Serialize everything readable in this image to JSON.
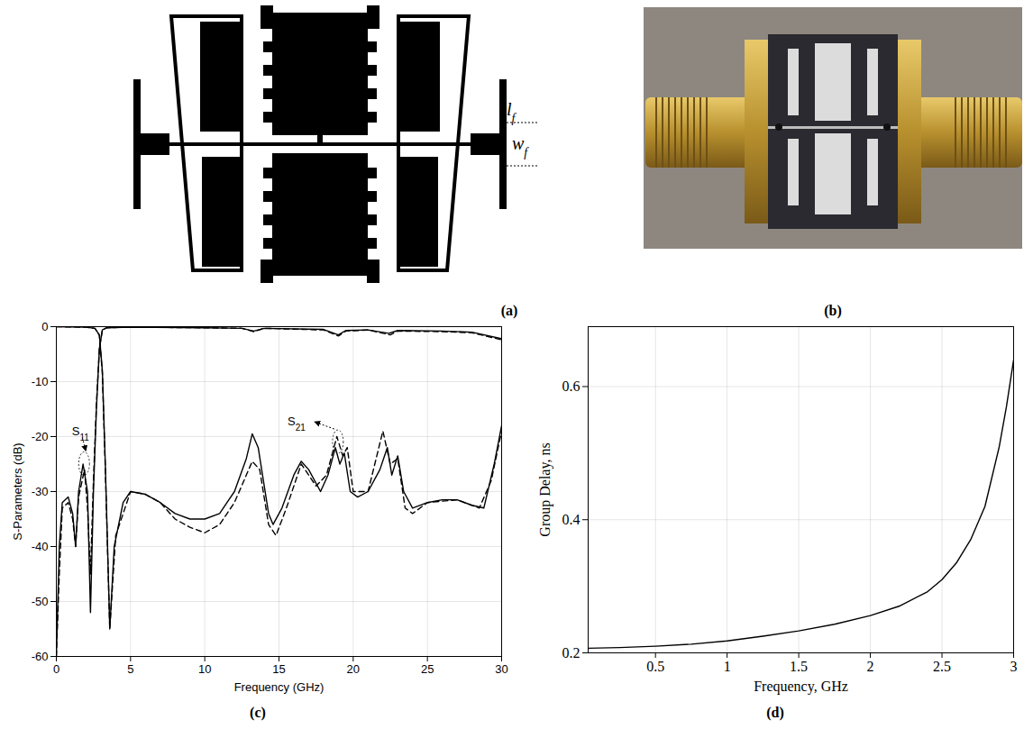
{
  "figure": {
    "a": {
      "panel": "(a)",
      "annotations": [
        {
          "text": "l",
          "sub": "f"
        },
        {
          "text": "w",
          "sub": "f"
        }
      ]
    },
    "b": {
      "panel": "(b)"
    }
  },
  "chart_data": [
    {
      "panel": "(c)",
      "type": "line",
      "xlabel": "Frequency (GHz)",
      "ylabel": "S-Parameters (dB)",
      "xlim": [
        0,
        30
      ],
      "xticks": [
        0,
        5,
        10,
        15,
        20,
        25,
        30
      ],
      "ylim": [
        -60,
        0
      ],
      "yticks": [
        -60,
        -50,
        -40,
        -30,
        -20,
        -10,
        0
      ],
      "grid": true,
      "series": [
        {
          "color": "#000000",
          "line_style": "solid",
          "x": [
            0,
            1,
            2,
            2.6,
            2.9,
            3.1,
            3.3,
            3.6,
            3.9,
            4.5,
            5,
            6,
            7,
            8,
            9,
            10,
            11,
            12,
            12.8,
            13.2,
            13.6,
            14.3,
            14.6,
            15.2,
            16,
            16.5,
            17,
            17.8,
            18.3,
            18.8,
            19.1,
            19.4,
            19.8,
            20.3,
            21,
            21.8,
            22.3,
            22.6,
            23,
            23.4,
            24,
            25,
            26,
            27,
            28,
            28.8,
            29.5,
            30
          ],
          "values": [
            0,
            -0.05,
            -0.1,
            -0.3,
            -1.5,
            -8,
            -25,
            -55,
            -40,
            -32,
            -30,
            -30.5,
            -32,
            -34,
            -35,
            -35,
            -34,
            -30,
            -24,
            -19.5,
            -22,
            -34,
            -36,
            -33,
            -27,
            -24.5,
            -26,
            -30,
            -27,
            -22,
            -25,
            -23,
            -30,
            -31,
            -30,
            -26,
            -22,
            -27,
            -23.5,
            -30,
            -33,
            -32,
            -31.5,
            -31.5,
            -32.5,
            -33,
            -25,
            -18
          ]
        },
        {
          "color": "#000000",
          "line_style": "dashed",
          "x": [
            0,
            1,
            2,
            2.6,
            2.9,
            3.1,
            3.3,
            3.6,
            4,
            5,
            6,
            7,
            8,
            9,
            10,
            11,
            12,
            13.2,
            13.7,
            14.3,
            14.8,
            15.5,
            16.5,
            17.5,
            18.2,
            18.9,
            19.3,
            19.6,
            20,
            21,
            22,
            22.5,
            23,
            23.5,
            24,
            25,
            27,
            28.5,
            29.3,
            30
          ],
          "values": [
            0,
            -0.05,
            -0.1,
            -0.3,
            -1.6,
            -8.5,
            -26,
            -55,
            -38,
            -30,
            -30.5,
            -32,
            -35,
            -36.5,
            -37.5,
            -36,
            -32,
            -24.5,
            -26,
            -36,
            -38,
            -33,
            -25,
            -29,
            -27,
            -20,
            -23.5,
            -22,
            -30,
            -30,
            -19,
            -25,
            -24,
            -33,
            -34,
            -32,
            -31.5,
            -33,
            -28,
            -19
          ]
        },
        {
          "color": "#000000",
          "line_style": "solid",
          "x": [
            0,
            0.2,
            0.4,
            0.8,
            1.1,
            1.3,
            1.5,
            1.8,
            2.1,
            2.3,
            2.5,
            2.7,
            2.9,
            3.1,
            3.4,
            5,
            10,
            12.5,
            13.3,
            14,
            18,
            19,
            19.5,
            21,
            22.4,
            23,
            26,
            28,
            30
          ],
          "values": [
            -60,
            -40,
            -32,
            -31,
            -34,
            -40,
            -30,
            -25,
            -30,
            -52,
            -30,
            -15,
            -4,
            -0.6,
            -0.2,
            -0.1,
            -0.2,
            -0.3,
            -0.8,
            -0.3,
            -0.5,
            -1.5,
            -0.7,
            -0.6,
            -1.2,
            -0.7,
            -0.8,
            -1,
            -2.2
          ]
        },
        {
          "color": "#000000",
          "line_style": "dashed",
          "x": [
            0,
            0.2,
            0.4,
            0.8,
            1.1,
            1.3,
            1.5,
            1.9,
            2.1,
            2.3,
            2.5,
            2.7,
            2.9,
            3.1,
            3.4,
            5,
            10,
            12.5,
            13.3,
            14,
            18,
            19,
            19.5,
            21,
            22.5,
            23,
            26,
            28,
            30
          ],
          "values": [
            -60,
            -45,
            -33,
            -32,
            -35,
            -40,
            -31,
            -26,
            -33,
            -45,
            -28,
            -14,
            -4,
            -0.6,
            -0.2,
            -0.1,
            -0.2,
            -0.3,
            -0.9,
            -0.3,
            -0.6,
            -1.7,
            -0.8,
            -0.6,
            -1.5,
            -0.8,
            -0.9,
            -1.1,
            -2.4
          ]
        }
      ],
      "annotations": [
        {
          "text": "S",
          "sub": "11",
          "x": 1.9,
          "y": -25
        },
        {
          "text": "S",
          "sub": "21",
          "x": 19,
          "y": -21
        }
      ]
    },
    {
      "panel": "(d)",
      "type": "line",
      "xlabel": "Frequency, GHz",
      "ylabel": "Group Delay, ns",
      "xlim": [
        0.03,
        3
      ],
      "xticks": [
        0.5,
        1,
        1.5,
        2,
        2.5,
        3
      ],
      "ylim": [
        0.2,
        0.69
      ],
      "yticks": [
        0.2,
        0.4,
        0.6
      ],
      "grid": true,
      "series": [
        {
          "color": "#000000",
          "line_style": "solid",
          "x": [
            0.03,
            0.25,
            0.5,
            0.75,
            1,
            1.25,
            1.5,
            1.75,
            2,
            2.2,
            2.4,
            2.5,
            2.6,
            2.7,
            2.8,
            2.9,
            2.95,
            3
          ],
          "values": [
            0.207,
            0.208,
            0.21,
            0.213,
            0.218,
            0.225,
            0.233,
            0.243,
            0.256,
            0.27,
            0.292,
            0.31,
            0.335,
            0.37,
            0.42,
            0.51,
            0.57,
            0.64
          ]
        }
      ]
    }
  ]
}
